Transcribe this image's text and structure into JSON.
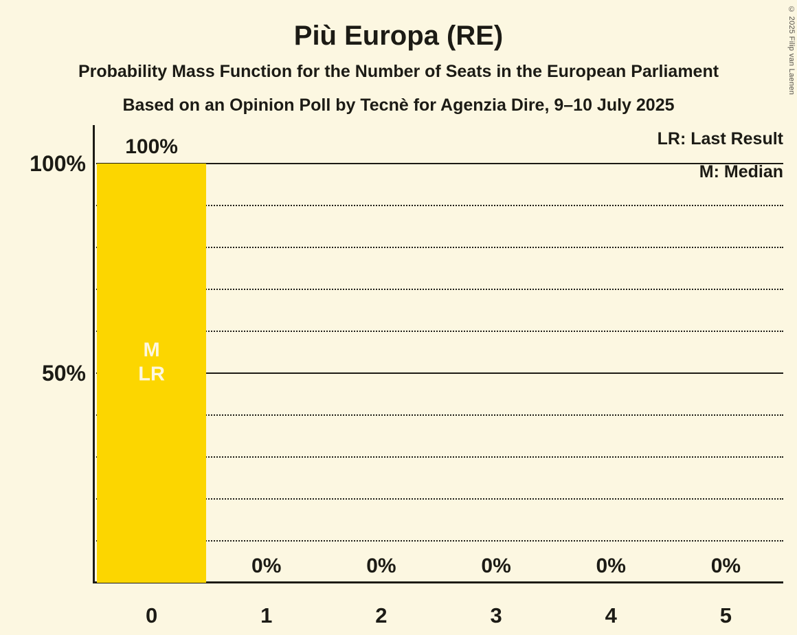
{
  "header": {
    "title": "Più Europa (RE)",
    "subtitle1": "Probability Mass Function for the Number of Seats in the European Parliament",
    "subtitle2": "Based on an Opinion Poll by Tecnè for Agenzia Dire, 9–10 July 2025",
    "copyright": "© 2025 Filip van Laenen"
  },
  "legend": {
    "lr": "LR: Last Result",
    "m": "M: Median"
  },
  "chart_data": {
    "type": "bar",
    "title": "Più Europa (RE)",
    "categories": [
      "0",
      "1",
      "2",
      "3",
      "4",
      "5"
    ],
    "values": [
      100,
      0,
      0,
      0,
      0,
      0
    ],
    "value_labels": [
      "100%",
      "0%",
      "0%",
      "0%",
      "0%",
      "0%"
    ],
    "bar_annotations": [
      [
        "M",
        "LR"
      ],
      [],
      [],
      [],
      [],
      []
    ],
    "xlabel": "",
    "ylabel": "",
    "ylim": [
      0,
      100
    ],
    "yticks": [
      {
        "value": 100,
        "label": "100%"
      },
      {
        "value": 50,
        "label": "50%"
      }
    ],
    "solid_gridlines": [
      100,
      50
    ],
    "dotted_gridlines": [
      90,
      80,
      70,
      60,
      40,
      30,
      20,
      10
    ],
    "legend_position": "top-right",
    "bar_color": "#FCD600",
    "background_color": "#FCF7E1",
    "text_color": "#1C1B15",
    "bar_text_color": "#FCF7E1"
  }
}
